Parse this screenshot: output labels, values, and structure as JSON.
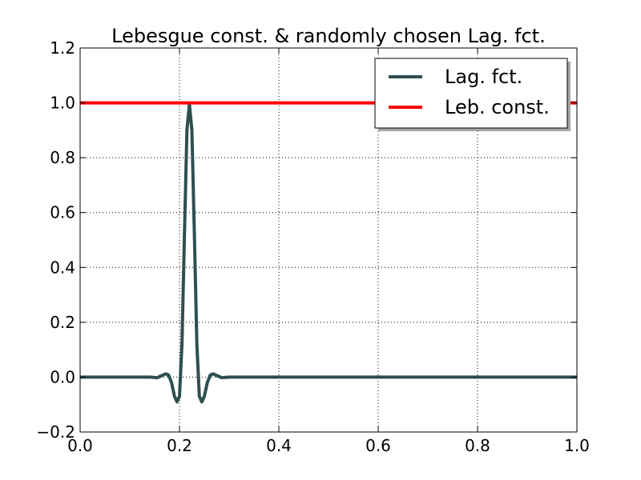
{
  "chart_data": {
    "type": "line",
    "title": "Lebesgue const. & randomly chosen Lag. fct.",
    "xlabel": "",
    "ylabel": "",
    "xlim": [
      0.0,
      1.0
    ],
    "ylim": [
      -0.2,
      1.2
    ],
    "grid": true,
    "legend_position": "top-right",
    "xticks": [
      0.0,
      0.2,
      0.4,
      0.6,
      0.8,
      1.0
    ],
    "xtick_labels": [
      "0.0",
      "0.2",
      "0.4",
      "0.6",
      "0.8",
      "1.0"
    ],
    "yticks": [
      -0.2,
      0.0,
      0.2,
      0.4,
      0.6,
      0.8,
      1.0,
      1.2
    ],
    "ytick_labels": [
      "−0.2",
      "0.0",
      "0.2",
      "0.4",
      "0.6",
      "0.8",
      "1.0",
      "1.2"
    ],
    "series": [
      {
        "name": "Lag. fct.",
        "color": "#2f4f4f",
        "x": [
          0.0,
          0.1,
          0.14,
          0.155,
          0.165,
          0.172,
          0.178,
          0.184,
          0.19,
          0.195,
          0.2,
          0.205,
          0.21,
          0.215,
          0.22,
          0.225,
          0.23,
          0.235,
          0.24,
          0.245,
          0.25,
          0.256,
          0.262,
          0.268,
          0.275,
          0.285,
          0.3,
          0.4,
          0.6,
          0.8,
          1.0
        ],
        "y": [
          0.0,
          0.0,
          0.0,
          -0.002,
          0.006,
          0.012,
          0.008,
          -0.02,
          -0.07,
          -0.09,
          -0.07,
          0.12,
          0.52,
          0.9,
          0.995,
          0.9,
          0.52,
          0.12,
          -0.07,
          -0.09,
          -0.07,
          -0.02,
          0.008,
          0.012,
          0.006,
          -0.002,
          0.0,
          0.0,
          0.0,
          0.0,
          0.0
        ]
      },
      {
        "name": "Leb. const.",
        "color": "#ff0000",
        "x": [
          0.0,
          1.0
        ],
        "y": [
          1.0,
          1.0
        ]
      }
    ]
  },
  "colors": {
    "lag_fct": "#2f4f4f",
    "leb_const": "#ff0000",
    "grid": "#000000"
  }
}
